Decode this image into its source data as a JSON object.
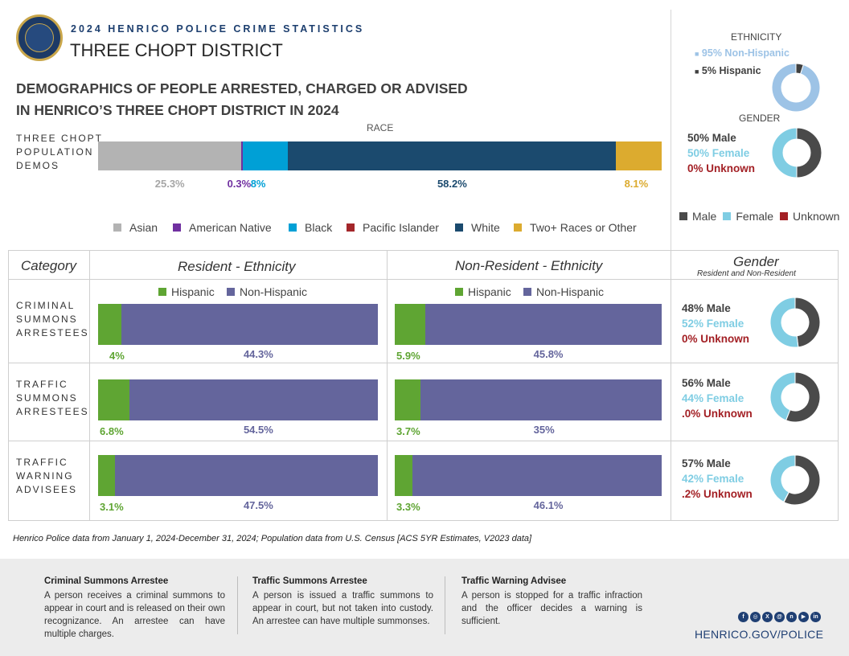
{
  "header": {
    "kicker": "2024 HENRICO POLICE CRIME STATISTICS",
    "district": "THREE CHOPT DISTRICT",
    "heading_line1": "DEMOGRAPHICS OF PEOPLE ARRESTED, CHARGED OR ADVISED",
    "heading_line2": "IN HENRICO’S THREE CHOPT DISTRICT IN 2024"
  },
  "colors": {
    "asian": "#b3b3b3",
    "american_native": "#7030a0",
    "black": "#00a0d6",
    "pacific_islander": "#a3262a",
    "white": "#1b4a6e",
    "two_plus": "#dcab2f",
    "hispanic": "#5fa533",
    "non_hispanic": "#64659c",
    "male": "#4a4a4a",
    "female": "#7fcde3",
    "unknown": "#a32025",
    "ethnicity_light": "#9dc3e6",
    "navy": "#1c3e6e"
  },
  "chart_data": [
    {
      "type": "bar",
      "orientation": "horizontal-stacked",
      "title": "RACE",
      "row_label": [
        "THREE CHOPT",
        "POPULATION",
        "DEMOS"
      ],
      "unit": "%",
      "categories": [
        "Asian",
        "American Native",
        "Black",
        "Pacific Islander",
        "White",
        "Two+ Races or Other"
      ],
      "values": [
        25.3,
        0.3,
        8,
        0,
        58.2,
        8.1
      ],
      "labels": [
        "25.3%",
        "0.3%",
        "8%",
        "",
        "58.2%",
        "8.1%"
      ],
      "legend_position": "bottom"
    },
    {
      "type": "pie",
      "variant": "donut",
      "title": "ETHNICITY",
      "categories": [
        "Non-Hispanic",
        "Hispanic"
      ],
      "values": [
        95,
        5
      ],
      "labels": [
        "95% Non-Hispanic",
        "5% Hispanic"
      ]
    },
    {
      "type": "pie",
      "variant": "donut",
      "title": "GENDER",
      "categories": [
        "Male",
        "Female",
        "Unknown"
      ],
      "values": [
        50,
        50,
        0
      ],
      "labels": [
        "50% Male",
        "50% Female",
        "0% Unknown"
      ],
      "legend": [
        "Male",
        "Female",
        "Unknown"
      ]
    },
    {
      "type": "table",
      "headers": {
        "category": "Category",
        "resident": "Resident - Ethnicity",
        "nonresident": "Non-Resident - Ethnicity",
        "gender": "Gender",
        "gender_sub": "Resident and Non-Resident"
      },
      "eth_legend": [
        "Hispanic",
        "Non-Hispanic"
      ],
      "rows": [
        {
          "label": [
            "CRIMINAL",
            "SUMMONS",
            "ARRESTEES"
          ],
          "resident": {
            "hispanic": 4,
            "non_hispanic": 44.3,
            "hispanic_label": "4%",
            "non_hispanic_label": "44.3%"
          },
          "nonresident": {
            "hispanic": 5.9,
            "non_hispanic": 45.8,
            "hispanic_label": "5.9%",
            "non_hispanic_label": "45.8%"
          },
          "gender": {
            "male": 48,
            "female": 52,
            "unknown": 0,
            "male_label": "48% Male",
            "female_label": "52% Female",
            "unknown_label": "0% Unknown"
          }
        },
        {
          "label": [
            "TRAFFIC",
            "SUMMONS",
            "ARRESTEES"
          ],
          "resident": {
            "hispanic": 6.8,
            "non_hispanic": 54.5,
            "hispanic_label": "6.8%",
            "non_hispanic_label": "54.5%"
          },
          "nonresident": {
            "hispanic": 3.7,
            "non_hispanic": 35,
            "hispanic_label": "3.7%",
            "non_hispanic_label": "35%"
          },
          "gender": {
            "male": 56,
            "female": 44,
            "unknown": 0,
            "male_label": "56% Male",
            "female_label": "44% Female",
            "unknown_label": ".0% Unknown"
          }
        },
        {
          "label": [
            "TRAFFIC",
            "WARNING",
            "ADVISEES"
          ],
          "resident": {
            "hispanic": 3.1,
            "non_hispanic": 47.5,
            "hispanic_label": "3.1%",
            "non_hispanic_label": "47.5%"
          },
          "nonresident": {
            "hispanic": 3.3,
            "non_hispanic": 46.1,
            "hispanic_label": "3.3%",
            "non_hispanic_label": "46.1%"
          },
          "gender": {
            "male": 57,
            "female": 42,
            "unknown": 0.2,
            "male_label": "57% Male",
            "female_label": "42% Female",
            "unknown_label": ".2% Unknown"
          }
        }
      ]
    }
  ],
  "footnote": "Henrico Police data from January 1, 2024-December 31, 2024; Population data from U.S. Census [ACS 5YR Estimates, V2023 data]",
  "definitions": [
    {
      "title": "Criminal Summons Arrestee",
      "text": "A person receives a criminal summons to appear in court and is released on their own recognizance. An arrestee can have multiple charges."
    },
    {
      "title": "Traffic Summons Arrestee",
      "text": "A person is issued a traffic summons to appear in court, but not taken into custody. An arrestee can have multiple summonses."
    },
    {
      "title": "Traffic Warning Advisee",
      "text": "A person is stopped for a traffic infraction and the officer decides a warning is sufficient."
    }
  ],
  "social_icons": [
    "facebook-icon",
    "instagram-icon",
    "x-icon",
    "threads-icon",
    "nextdoor-icon",
    "youtube-icon",
    "linkedin-icon"
  ],
  "site": "HENRICO.GOV/POLICE"
}
